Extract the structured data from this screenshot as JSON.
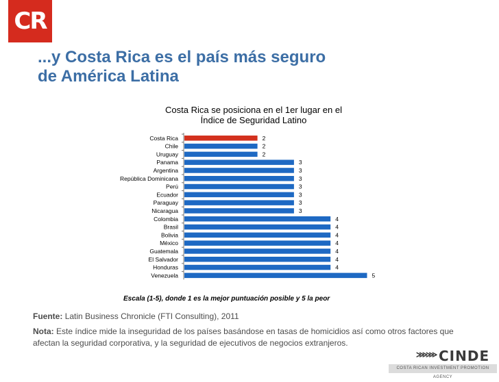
{
  "logo": {
    "text": "CR"
  },
  "slide": {
    "title_line1": "...y Costa Rica es el país más seguro",
    "title_line2": "de América Latina"
  },
  "chart_data": {
    "type": "bar",
    "orientation": "horizontal",
    "title_line1": "Costa Rica se posiciona en el 1er lugar en el",
    "title_line2": "Índice de Seguridad Latino",
    "categories": [
      "Costa Rica",
      "Chile",
      "Uruguay",
      "Panama",
      "Argentina",
      "República Dominicana",
      "Perú",
      "Ecuador",
      "Paraguay",
      "Nicaragua",
      "Colombia",
      "Brasil",
      "Bolivia",
      "México",
      "Guatemala",
      "El Salvador",
      "Honduras",
      "Venezuela"
    ],
    "values": [
      2,
      2,
      2,
      3,
      3,
      3,
      3,
      3,
      3,
      3,
      4,
      4,
      4,
      4,
      4,
      4,
      4,
      5
    ],
    "highlight_index": 0,
    "colors": {
      "highlight": "#d3311e",
      "default": "#1e69c3"
    },
    "xlim": [
      0,
      5
    ],
    "grid": false,
    "legend": "none",
    "note": "Escala (1-5), donde 1 es la mejor puntuación posible y 5 la peor"
  },
  "source": {
    "label": "Fuente:",
    "text": "Latin Business Chronicle (FTI Consulting), 2011"
  },
  "note": {
    "label": "Nota:",
    "text": "Este índice mide la inseguridad de los países basándose en tasas de homicidios así como otros factores que afectan la seguridad corporativa, y la seguridad de ejecutivos de negocios extranjeros."
  },
  "footer": {
    "brand": "CINDE",
    "tagline": "COSTA RICAN INVESTMENT PROMOTION AGENCY"
  }
}
